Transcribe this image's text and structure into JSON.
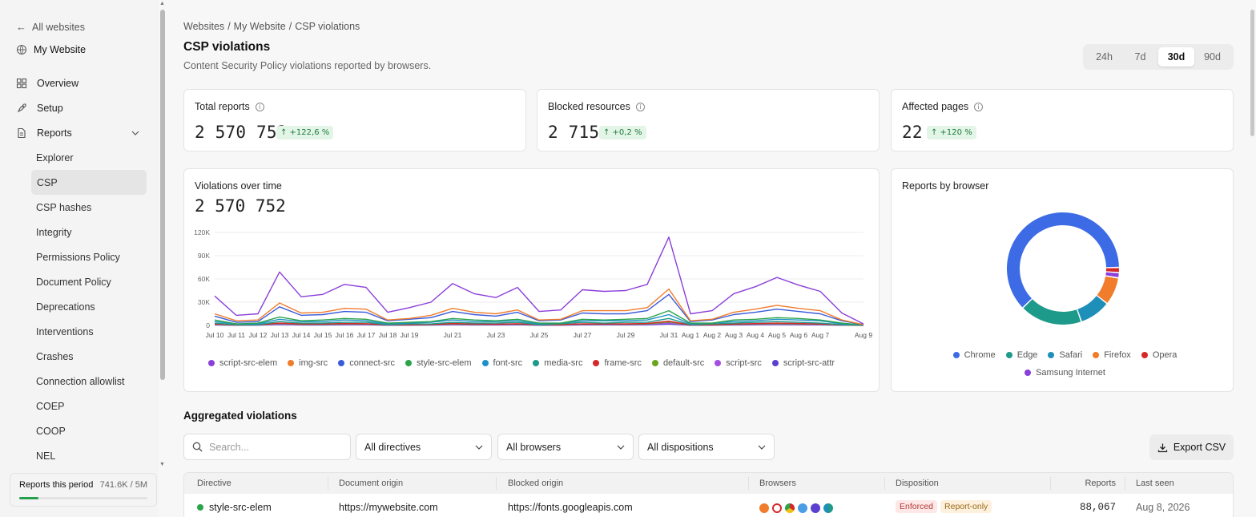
{
  "sidebar": {
    "back_label": "All websites",
    "site_name": "My Website",
    "nav": [
      {
        "label": "Overview",
        "icon": "grid-icon"
      },
      {
        "label": "Setup",
        "icon": "rocket-icon"
      },
      {
        "label": "Reports",
        "icon": "document-icon"
      }
    ],
    "sub_items": [
      "Explorer",
      "CSP",
      "CSP hashes",
      "Integrity",
      "Permissions Policy",
      "Document Policy",
      "Deprecations",
      "Interventions",
      "Crashes",
      "Connection allowlist",
      "COEP",
      "COOP",
      "NEL"
    ],
    "active_sub": "CSP",
    "period": {
      "label": "Reports this period",
      "value": "741.6K / 5M",
      "fraction": 0.148
    }
  },
  "breadcrumb": [
    "Websites",
    "My Website",
    "CSP violations"
  ],
  "page": {
    "title": "CSP violations",
    "subtitle": "Content Security Policy violations reported by browsers."
  },
  "range": {
    "options": [
      "24h",
      "7d",
      "30d",
      "90d"
    ],
    "selected": "30d"
  },
  "kpis": [
    {
      "label": "Total reports",
      "value": "2 570 752",
      "change": "↑ +122,6 %"
    },
    {
      "label": "Blocked resources",
      "value": "2 715",
      "change": "↑ +0,2 %"
    },
    {
      "label": "Affected pages",
      "value": "22",
      "change": "↑ +120 %"
    }
  ],
  "violations_chart": {
    "title": "Violations over time",
    "total": "2 570 752"
  },
  "browser_chart": {
    "title": "Reports by browser"
  },
  "chart_data": [
    {
      "type": "line",
      "title": "Violations over time",
      "x": [
        "Jul 10",
        "Jul 11",
        "Jul 12",
        "Jul 13",
        "Jul 14",
        "Jul 15",
        "Jul 16",
        "Jul 17",
        "Jul 18",
        "Jul 19",
        "Jul 20",
        "Jul 21",
        "Jul 22",
        "Jul 23",
        "Jul 24",
        "Jul 25",
        "Jul 26",
        "Jul 27",
        "Jul 28",
        "Jul 29",
        "Jul 30",
        "Jul 31",
        "Aug 1",
        "Aug 2",
        "Aug 3",
        "Aug 4",
        "Aug 5",
        "Aug 6",
        "Aug 7",
        "Aug 8",
        "Aug 9"
      ],
      "tick_labels": [
        "Jul 10",
        "Jul 11",
        "Jul 12",
        "Jul 13",
        "Jul 14",
        "Jul 15",
        "Jul 16",
        "Jul 17",
        "Jul 18",
        "Jul 19",
        "Jul 21",
        "Jul 23",
        "Jul 25",
        "Jul 27",
        "Jul 29",
        "Jul 31",
        "Aug 1",
        "Aug 2",
        "Aug 3",
        "Aug 4",
        "Aug 5",
        "Aug 6",
        "Aug 7",
        "Aug 9"
      ],
      "yticks": [
        "0",
        "30K",
        "60K",
        "90K",
        "120K"
      ],
      "ylim": [
        0,
        120000
      ],
      "grid": true,
      "series": [
        {
          "name": "script-src-elem",
          "color": "#8b3fd9",
          "values": [
            38000,
            13000,
            15000,
            69000,
            37000,
            40000,
            53000,
            49000,
            17000,
            23000,
            30000,
            54000,
            41000,
            36000,
            49000,
            18000,
            20000,
            46000,
            44000,
            45000,
            53000,
            114000,
            15000,
            19000,
            41000,
            50000,
            62000,
            52000,
            44000,
            16000,
            2000
          ]
        },
        {
          "name": "img-src",
          "color": "#f07c2c",
          "values": [
            15000,
            6000,
            7000,
            29000,
            16000,
            17000,
            22000,
            21000,
            7000,
            9000,
            13000,
            22000,
            17000,
            15000,
            20000,
            7000,
            8000,
            19000,
            19000,
            19000,
            23000,
            47000,
            6000,
            8000,
            17000,
            21000,
            26000,
            22000,
            19000,
            7000,
            1000
          ]
        },
        {
          "name": "connect-src",
          "color": "#3a5bd9",
          "values": [
            12000,
            4000,
            5000,
            24000,
            13000,
            14000,
            18000,
            17000,
            6000,
            8000,
            10000,
            18000,
            14000,
            12000,
            17000,
            6000,
            7000,
            16000,
            15000,
            15000,
            19000,
            40000,
            5000,
            7000,
            14000,
            17000,
            21000,
            18000,
            15000,
            6000,
            1000
          ]
        },
        {
          "name": "style-src-elem",
          "color": "#2ca44a",
          "values": [
            7000,
            2000,
            3000,
            11000,
            6000,
            7000,
            9000,
            8000,
            3000,
            4000,
            5000,
            9000,
            7000,
            6000,
            8000,
            3000,
            3000,
            8000,
            7000,
            8000,
            9000,
            19000,
            3000,
            3000,
            7000,
            8000,
            10000,
            9000,
            7000,
            3000,
            500
          ]
        },
        {
          "name": "font-src",
          "color": "#1e90c8",
          "values": [
            5000,
            2000,
            2000,
            8000,
            5000,
            5000,
            7000,
            6000,
            2000,
            3000,
            4000,
            7000,
            5000,
            5000,
            6000,
            2000,
            3000,
            6000,
            6000,
            6000,
            7000,
            14000,
            2000,
            3000,
            5000,
            6000,
            8000,
            7000,
            6000,
            2000,
            400
          ]
        },
        {
          "name": "media-src",
          "color": "#1e9a8a",
          "values": [
            3000,
            1000,
            1000,
            5000,
            3000,
            3000,
            4000,
            4000,
            1000,
            2000,
            2000,
            4000,
            3000,
            3000,
            4000,
            1000,
            2000,
            4000,
            3000,
            4000,
            4000,
            9000,
            1000,
            2000,
            3000,
            4000,
            5000,
            4000,
            3000,
            1000,
            300
          ]
        },
        {
          "name": "frame-src",
          "color": "#d62828",
          "values": [
            2000,
            800,
            900,
            3000,
            2000,
            2000,
            2500,
            2300,
            800,
            1000,
            1300,
            2500,
            2000,
            1700,
            2300,
            800,
            1000,
            2200,
            2100,
            2100,
            2500,
            5500,
            700,
            900,
            2000,
            2400,
            3000,
            2500,
            2100,
            800,
            200
          ]
        },
        {
          "name": "default-src",
          "color": "#6aa51c",
          "values": [
            1500,
            600,
            700,
            2500,
            1500,
            1600,
            2000,
            1900,
            600,
            800,
            1100,
            2000,
            1600,
            1400,
            1900,
            600,
            800,
            1800,
            1700,
            1700,
            2000,
            4500,
            600,
            700,
            1600,
            2000,
            2400,
            2000,
            1700,
            600,
            150
          ]
        },
        {
          "name": "script-src",
          "color": "#a54ee0",
          "values": [
            1000,
            400,
            500,
            1800,
            1000,
            1100,
            1400,
            1300,
            400,
            600,
            800,
            1400,
            1100,
            1000,
            1300,
            400,
            500,
            1200,
            1200,
            1200,
            1400,
            3000,
            400,
            500,
            1100,
            1300,
            1600,
            1400,
            1200,
            400,
            100
          ]
        },
        {
          "name": "script-src-attr",
          "color": "#5b3fd0",
          "values": [
            600,
            250,
            300,
            1100,
            600,
            650,
            850,
            800,
            250,
            350,
            500,
            850,
            650,
            600,
            800,
            250,
            300,
            750,
            700,
            700,
            850,
            1800,
            250,
            300,
            650,
            800,
            1000,
            850,
            700,
            250,
            60
          ]
        }
      ]
    },
    {
      "type": "pie",
      "title": "Reports by browser",
      "categories": [
        "Chrome",
        "Edge",
        "Safari",
        "Firefox",
        "Opera",
        "Samsung Internet"
      ],
      "values": [
        62,
        18,
        9,
        8,
        1.5,
        1.5
      ],
      "colors": [
        "#3d6be6",
        "#1e9a8a",
        "#1e8fb8",
        "#f07c2c",
        "#d62828",
        "#8b3fd9"
      ]
    }
  ],
  "table_section": {
    "title": "Aggregated violations",
    "search_placeholder": "Search...",
    "filters": [
      "All directives",
      "All browsers",
      "All dispositions"
    ],
    "export_label": "Export CSV",
    "columns": [
      "Directive",
      "Document origin",
      "Blocked origin",
      "Browsers",
      "Disposition",
      "Reports",
      "Last seen"
    ],
    "rows": [
      {
        "directive": "style-src-elem",
        "status_color": "#2ca44a",
        "document_origin": "https://mywebsite.com",
        "blocked_origin": "https://fonts.googleapis.com",
        "browsers": [
          "firefox-icon",
          "opera-icon",
          "chrome-icon",
          "safari-icon",
          "samsung-icon",
          "edge-icon"
        ],
        "dispositions": [
          "Enforced",
          "Report-only"
        ],
        "reports": "88,067",
        "last_seen": "Aug 8, 2026"
      }
    ]
  }
}
